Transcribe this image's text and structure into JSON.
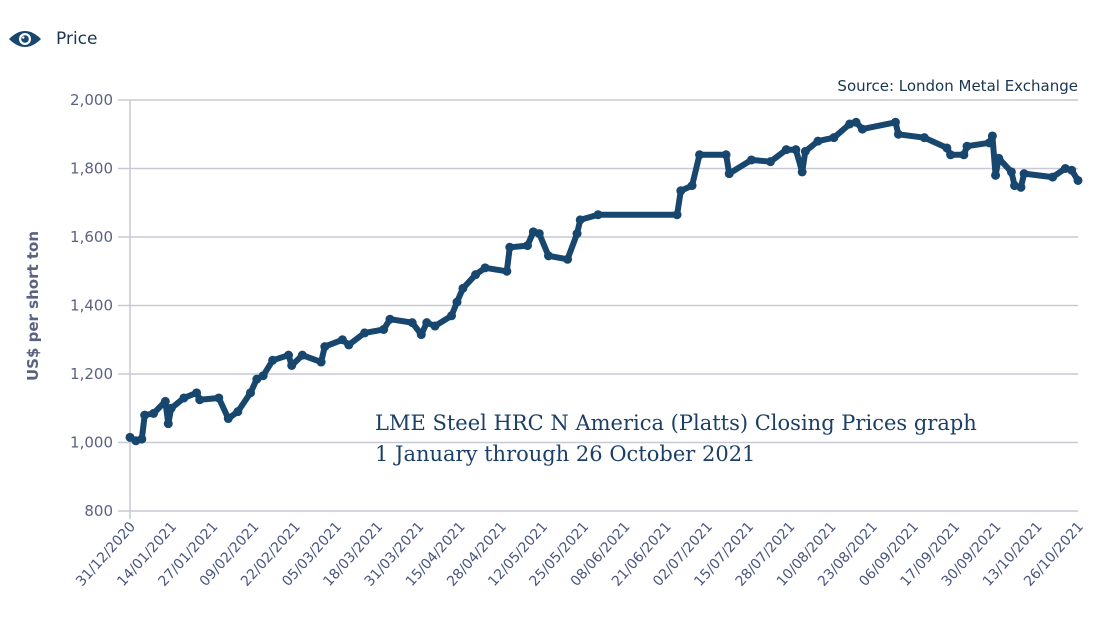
{
  "legend": {
    "label": "Price",
    "icon": "eye-icon"
  },
  "chart_data": {
    "type": "line",
    "title": "LME Steel HRC N America (Platts) Closing Prices graph",
    "subtitle": "1 January through 26 October 2021",
    "source": "Source: London Metal Exchange",
    "ylabel": "US$ per short ton",
    "xlabel": "",
    "ylim": [
      800,
      2000
    ],
    "yticks": [
      "800",
      "1,000",
      "1,200",
      "1,400",
      "1,600",
      "1,800",
      "2,000"
    ],
    "ytick_values": [
      800,
      1000,
      1200,
      1400,
      1600,
      1800,
      2000
    ],
    "xticks": [
      "31/12/2020",
      "14/01/2021",
      "27/01/2021",
      "09/02/2021",
      "22/02/2021",
      "05/03/2021",
      "18/03/2021",
      "31/03/2021",
      "15/04/2021",
      "28/04/2021",
      "12/05/2021",
      "25/05/2021",
      "08/06/2021",
      "21/06/2021",
      "02/07/2021",
      "15/07/2021",
      "28/07/2021",
      "10/08/2021",
      "23/08/2021",
      "06/09/2021",
      "17/09/2021",
      "30/09/2021",
      "13/10/2021",
      "26/10/2021"
    ],
    "grid": true,
    "legend_position": "top-left",
    "series_color": "#17466e",
    "series": [
      {
        "name": "Price",
        "points": [
          [
            "2020-12-31",
            1015
          ],
          [
            "2021-01-02",
            1005
          ],
          [
            "2021-01-04",
            1010
          ],
          [
            "2021-01-05",
            1080
          ],
          [
            "2021-01-08",
            1085
          ],
          [
            "2021-01-12",
            1120
          ],
          [
            "2021-01-13",
            1055
          ],
          [
            "2021-01-14",
            1100
          ],
          [
            "2021-01-18",
            1130
          ],
          [
            "2021-01-22",
            1145
          ],
          [
            "2021-01-23",
            1125
          ],
          [
            "2021-01-29",
            1130
          ],
          [
            "2021-02-01",
            1070
          ],
          [
            "2021-02-04",
            1090
          ],
          [
            "2021-02-08",
            1145
          ],
          [
            "2021-02-10",
            1185
          ],
          [
            "2021-02-12",
            1195
          ],
          [
            "2021-02-15",
            1240
          ],
          [
            "2021-02-20",
            1255
          ],
          [
            "2021-02-21",
            1225
          ],
          [
            "2021-02-24",
            1255
          ],
          [
            "2021-03-01",
            1235
          ],
          [
            "2021-03-02",
            1280
          ],
          [
            "2021-03-07",
            1300
          ],
          [
            "2021-03-09",
            1285
          ],
          [
            "2021-03-14",
            1320
          ],
          [
            "2021-03-20",
            1330
          ],
          [
            "2021-03-22",
            1360
          ],
          [
            "2021-03-29",
            1350
          ],
          [
            "2021-04-01",
            1315
          ],
          [
            "2021-04-03",
            1350
          ],
          [
            "2021-04-06",
            1340
          ],
          [
            "2021-04-12",
            1370
          ],
          [
            "2021-04-14",
            1410
          ],
          [
            "2021-04-16",
            1450
          ],
          [
            "2021-04-20",
            1490
          ],
          [
            "2021-04-23",
            1510
          ],
          [
            "2021-04-30",
            1500
          ],
          [
            "2021-05-01",
            1570
          ],
          [
            "2021-05-07",
            1575
          ],
          [
            "2021-05-09",
            1615
          ],
          [
            "2021-05-11",
            1610
          ],
          [
            "2021-05-14",
            1545
          ],
          [
            "2021-05-20",
            1535
          ],
          [
            "2021-05-23",
            1610
          ],
          [
            "2021-05-24",
            1650
          ],
          [
            "2021-05-30",
            1665
          ],
          [
            "2021-06-24",
            1665
          ],
          [
            "2021-06-25",
            1735
          ],
          [
            "2021-06-28",
            1750
          ],
          [
            "2021-06-30",
            1840
          ],
          [
            "2021-07-08",
            1840
          ],
          [
            "2021-07-09",
            1785
          ],
          [
            "2021-07-16",
            1825
          ],
          [
            "2021-07-22",
            1820
          ],
          [
            "2021-07-27",
            1855
          ],
          [
            "2021-07-30",
            1855
          ],
          [
            "2021-08-01",
            1790
          ],
          [
            "2021-08-02",
            1850
          ],
          [
            "2021-08-06",
            1880
          ],
          [
            "2021-08-11",
            1890
          ],
          [
            "2021-08-16",
            1930
          ],
          [
            "2021-08-18",
            1935
          ],
          [
            "2021-08-20",
            1915
          ],
          [
            "2021-08-31",
            1935
          ],
          [
            "2021-09-01",
            1900
          ],
          [
            "2021-09-09",
            1890
          ],
          [
            "2021-09-15",
            1860
          ],
          [
            "2021-09-16",
            1840
          ],
          [
            "2021-09-20",
            1840
          ],
          [
            "2021-09-21",
            1865
          ],
          [
            "2021-09-28",
            1875
          ],
          [
            "2021-09-29",
            1895
          ],
          [
            "2021-09-30",
            1780
          ],
          [
            "2021-10-01",
            1830
          ],
          [
            "2021-10-05",
            1790
          ],
          [
            "2021-10-06",
            1750
          ],
          [
            "2021-10-08",
            1745
          ],
          [
            "2021-10-09",
            1785
          ],
          [
            "2021-10-18",
            1775
          ],
          [
            "2021-10-22",
            1800
          ],
          [
            "2021-10-24",
            1795
          ],
          [
            "2021-10-26",
            1765
          ]
        ]
      }
    ]
  }
}
